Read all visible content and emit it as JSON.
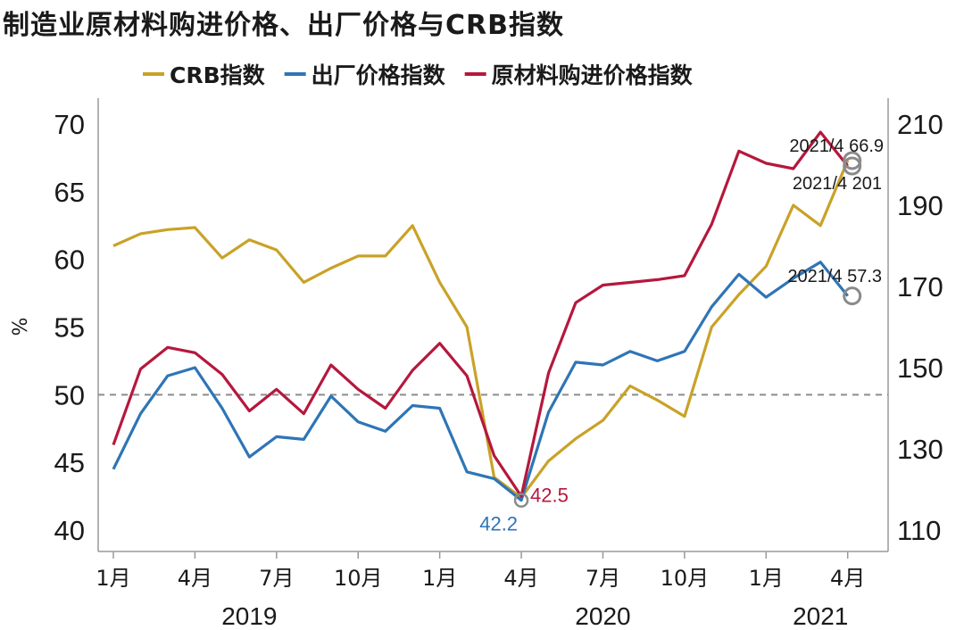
{
  "chart_data": {
    "type": "line",
    "title": "制造业原材料购进价格、出厂价格与CRB指数",
    "ylabel": "%",
    "ylim": [
      40,
      70
    ],
    "yticks": [
      40,
      45,
      50,
      55,
      60,
      65,
      70
    ],
    "y2lim": [
      110,
      210
    ],
    "y2ticks": [
      110,
      130,
      150,
      170,
      190,
      210
    ],
    "reference_line": {
      "y": 50,
      "style": "dashed"
    },
    "x": [
      "2019-01",
      "2019-02",
      "2019-03",
      "2019-04",
      "2019-05",
      "2019-06",
      "2019-07",
      "2019-08",
      "2019-09",
      "2019-10",
      "2019-11",
      "2019-12",
      "2020-01",
      "2020-02",
      "2020-03",
      "2020-04",
      "2020-05",
      "2020-06",
      "2020-07",
      "2020-08",
      "2020-09",
      "2020-10",
      "2020-11",
      "2020-12",
      "2021-01",
      "2021-02",
      "2021-03",
      "2021-04"
    ],
    "xtick_labels": [
      {
        "x": "2019-01",
        "label": "1月"
      },
      {
        "x": "2019-04",
        "label": "4月"
      },
      {
        "x": "2019-07",
        "label": "7月"
      },
      {
        "x": "2019-10",
        "label": "10月"
      },
      {
        "x": "2020-01",
        "label": "1月"
      },
      {
        "x": "2020-04",
        "label": "4月"
      },
      {
        "x": "2020-07",
        "label": "7月"
      },
      {
        "x": "2020-10",
        "label": "10月"
      },
      {
        "x": "2021-01",
        "label": "1月"
      },
      {
        "x": "2021-04",
        "label": "4月"
      }
    ],
    "year_labels": [
      {
        "x": "2019-06",
        "label": "2019"
      },
      {
        "x": "2020-07",
        "label": "2020"
      },
      {
        "x": "2021-03",
        "label": "2021"
      }
    ],
    "legend_position": "top",
    "series": [
      {
        "name": "CRB指数",
        "axis": "right",
        "color": "#C9A227",
        "values": [
          180,
          183,
          184,
          184.5,
          177,
          181.5,
          179,
          171,
          174.5,
          177.5,
          177.5,
          185,
          171,
          160,
          123,
          118,
          127,
          132.5,
          137,
          145.5,
          142,
          138,
          160,
          168,
          175,
          190,
          185,
          201
        ]
      },
      {
        "name": "出厂价格指数",
        "axis": "left",
        "color": "#2E75B6",
        "values": [
          44.5,
          48.6,
          51.4,
          52.0,
          49.0,
          45.4,
          46.9,
          46.7,
          49.9,
          48.0,
          47.3,
          49.2,
          49.0,
          44.3,
          43.8,
          42.2,
          48.7,
          52.4,
          52.2,
          53.2,
          52.5,
          53.2,
          56.5,
          58.9,
          57.2,
          58.6,
          59.8,
          57.3
        ]
      },
      {
        "name": "原材料购进价格指数",
        "axis": "left",
        "color": "#B5183D",
        "values": [
          46.3,
          51.9,
          53.5,
          53.1,
          51.5,
          48.8,
          50.4,
          48.6,
          52.2,
          50.4,
          49.0,
          51.8,
          53.8,
          51.4,
          45.5,
          42.5,
          51.6,
          56.8,
          58.1,
          58.3,
          58.5,
          58.8,
          62.6,
          68.0,
          67.1,
          66.7,
          69.4,
          66.9
        ]
      }
    ],
    "annotations": [
      {
        "text": "2021/4 66.9",
        "series": "原材料购进价格指数",
        "x": "2021-04"
      },
      {
        "text": "2021/4 201",
        "series": "CRB指数",
        "x": "2021-04"
      },
      {
        "text": "2021/4 57.3",
        "series": "出厂价格指数",
        "x": "2021-04"
      },
      {
        "text": "42.2",
        "series": "出厂价格指数",
        "x": "2020-04"
      },
      {
        "text": "42.5",
        "series": "原材料购进价格指数",
        "x": "2020-04"
      }
    ]
  }
}
